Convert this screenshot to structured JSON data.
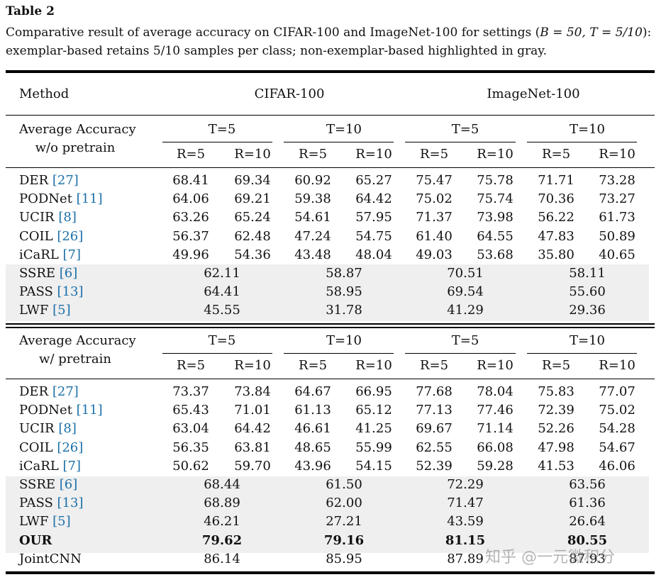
{
  "table": {
    "label": "Table 2",
    "caption_pre": "Comparative result of average accuracy on CIFAR-100 and ImageNet-100 for settings (",
    "caption_settings": "B = 50, T = 5/10",
    "caption_post": "): exemplar-based retains 5/10 samples per class; non-exemplar-based highlighted in gray.",
    "header": {
      "method": "Method",
      "dataset1": "CIFAR-100",
      "dataset2": "ImageNet-100"
    },
    "t_labels": [
      "T=5",
      "T=10",
      "T=5",
      "T=10"
    ],
    "r_labels": [
      "R=5",
      "R=10",
      "R=5",
      "R=10",
      "R=5",
      "R=10",
      "R=5",
      "R=10"
    ],
    "sections": [
      {
        "title_line1": "Average Accuracy",
        "title_line2": "w/o pretrain",
        "exemplar_rows": [
          {
            "name": "DER",
            "ref": "[27]",
            "values": [
              "68.41",
              "69.34",
              "60.92",
              "65.27",
              "75.47",
              "75.78",
              "71.71",
              "73.28"
            ]
          },
          {
            "name": "PODNet",
            "ref": "[11]",
            "values": [
              "64.06",
              "69.21",
              "59.38",
              "64.42",
              "75.02",
              "75.74",
              "70.36",
              "73.27"
            ]
          },
          {
            "name": "UCIR",
            "ref": "[8]",
            "values": [
              "63.26",
              "65.24",
              "54.61",
              "57.95",
              "71.37",
              "73.98",
              "56.22",
              "61.73"
            ]
          },
          {
            "name": "COIL",
            "ref": "[26]",
            "values": [
              "56.37",
              "62.48",
              "47.24",
              "54.75",
              "61.40",
              "64.55",
              "47.83",
              "50.89"
            ]
          },
          {
            "name": "iCaRL",
            "ref": "[7]",
            "values": [
              "49.96",
              "54.36",
              "43.48",
              "48.04",
              "49.03",
              "53.68",
              "35.80",
              "40.65"
            ]
          }
        ],
        "nonexemplar_rows": [
          {
            "name": "SSRE",
            "ref": "[6]",
            "values": [
              "62.11",
              "58.87",
              "70.51",
              "58.11"
            ]
          },
          {
            "name": "PASS",
            "ref": "[13]",
            "values": [
              "64.41",
              "58.95",
              "69.54",
              "55.60"
            ]
          },
          {
            "name": "LWF",
            "ref": "[5]",
            "values": [
              "45.55",
              "31.78",
              "41.29",
              "29.36"
            ]
          }
        ]
      },
      {
        "title_line1": "Average Accuracy",
        "title_line2": "w/ pretrain",
        "exemplar_rows": [
          {
            "name": "DER",
            "ref": "[27]",
            "values": [
              "73.37",
              "73.84",
              "64.67",
              "66.95",
              "77.68",
              "78.04",
              "75.83",
              "77.07"
            ]
          },
          {
            "name": "PODNet",
            "ref": "[11]",
            "values": [
              "65.43",
              "71.01",
              "61.13",
              "65.12",
              "77.13",
              "77.46",
              "72.39",
              "75.02"
            ]
          },
          {
            "name": "UCIR",
            "ref": "[8]",
            "values": [
              "63.04",
              "64.42",
              "46.61",
              "41.25",
              "69.67",
              "71.14",
              "52.26",
              "54.28"
            ]
          },
          {
            "name": "COIL",
            "ref": "[26]",
            "values": [
              "56.35",
              "63.81",
              "48.65",
              "55.99",
              "62.55",
              "66.08",
              "47.98",
              "54.67"
            ]
          },
          {
            "name": "iCaRL",
            "ref": "[7]",
            "values": [
              "50.62",
              "59.70",
              "43.96",
              "54.15",
              "52.39",
              "59.28",
              "41.53",
              "46.06"
            ]
          }
        ],
        "nonexemplar_rows": [
          {
            "name": "SSRE",
            "ref": "[6]",
            "values": [
              "68.44",
              "61.50",
              "72.29",
              "63.56"
            ]
          },
          {
            "name": "PASS",
            "ref": "[13]",
            "values": [
              "68.89",
              "62.00",
              "71.47",
              "61.36"
            ]
          },
          {
            "name": "LWF",
            "ref": "[5]",
            "values": [
              "46.21",
              "27.21",
              "43.59",
              "26.64"
            ]
          }
        ],
        "our_row": {
          "name": "OUR",
          "values": [
            "79.62",
            "79.16",
            "81.15",
            "80.55"
          ]
        },
        "joint_row": {
          "name": "JointCNN",
          "values": [
            "86.14",
            "85.95",
            "87.89",
            "87.93"
          ]
        }
      }
    ],
    "watermark": "知乎 @一元微积分"
  }
}
